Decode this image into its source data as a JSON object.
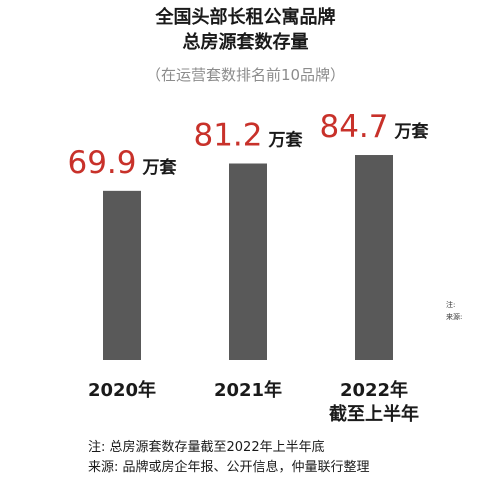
{
  "header": {
    "title_line1": "全国头部长租公寓品牌",
    "title_line2": "总房源套数存量",
    "subtitle": "（在运营套数排名前10品牌）"
  },
  "chart_data": {
    "type": "bar",
    "categories": [
      [
        "2020年"
      ],
      [
        "2021年"
      ],
      [
        "2022年",
        "截至上半年"
      ]
    ],
    "values": [
      69.9,
      81.2,
      84.7
    ],
    "unit": "万套",
    "bar_color": "#595959",
    "value_color": "#c8312a",
    "ylim": [
      0,
      90
    ],
    "grid": false,
    "legend": null
  },
  "notes": {
    "side_note_label": "注:",
    "side_source_label": "来源:",
    "note": "注:  总房源套数存量截至2022年上半年底",
    "source": "来源:  品牌或房企年报、公开信息，仲量联行整理"
  }
}
